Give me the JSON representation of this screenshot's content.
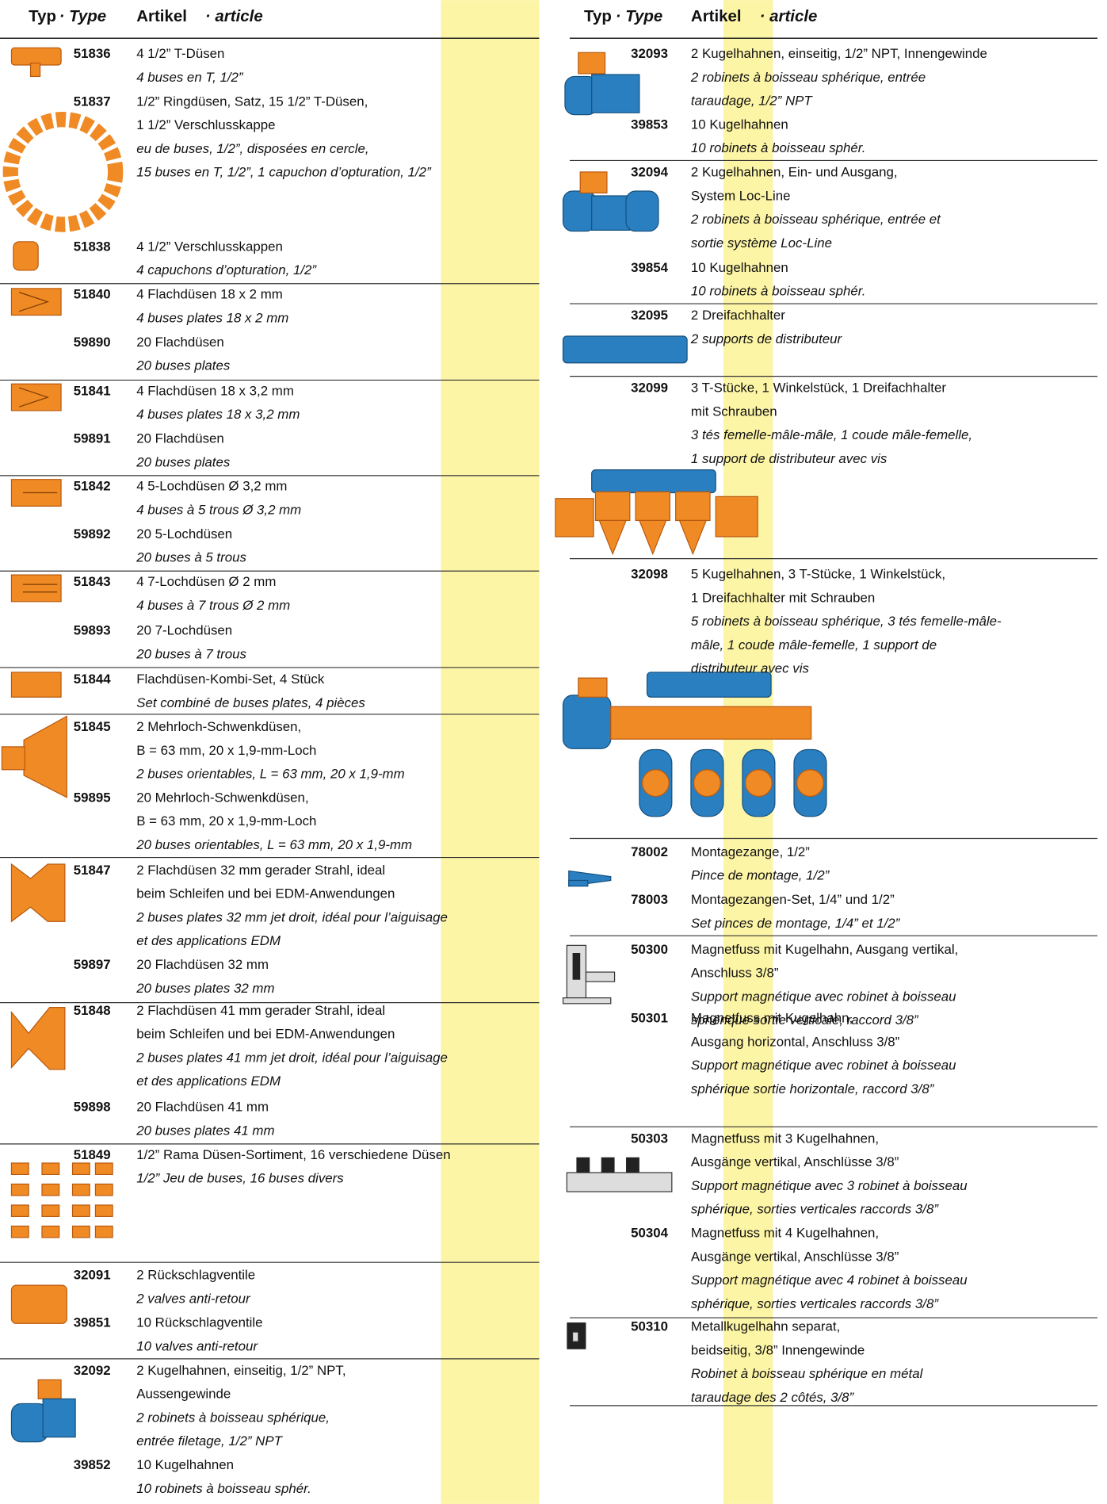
{
  "header": {
    "left": {
      "typ": "Typ",
      "type": "· Type",
      "artikel": "Artikel",
      "article": "· article"
    },
    "right": {
      "typ": "Typ",
      "type": "· Type",
      "artikel": "Artikel",
      "article": "· article"
    }
  },
  "columns": [
    {
      "groups": [
        {
          "items": [
            {
              "code": "51836",
              "de": [
                "4 1/2” T-Düsen"
              ],
              "fr": [
                "4 buses en T, 1/2”"
              ]
            },
            {
              "code": "51837",
              "de": [
                "1/2” Ringdüsen, Satz, 15 1/2” T-Düsen,",
                "1 1/2” Verschlusskappe"
              ],
              "fr": [
                "eu de buses, 1/2”, disposées en cercle,",
                "15 buses en T, 1/2”, 1 capuchon d’opturation, 1/2”"
              ]
            },
            {
              "code": "51838",
              "de": [
                "4 1/2” Verschlusskappen"
              ],
              "fr": [
                "4 capuchons d’opturation, 1/2”"
              ]
            }
          ]
        },
        {
          "items": [
            {
              "code": "51840",
              "de": [
                "4 Flachdüsen 18 x 2 mm"
              ],
              "fr": [
                "4 buses plates 18 x 2 mm"
              ]
            },
            {
              "code": "59890",
              "de": [
                "20 Flachdüsen"
              ],
              "fr": [
                "20 buses plates"
              ]
            }
          ]
        },
        {
          "items": [
            {
              "code": "51841",
              "de": [
                "4 Flachdüsen 18 x 3,2 mm"
              ],
              "fr": [
                "4 buses plates 18 x 3,2 mm"
              ]
            },
            {
              "code": "59891",
              "de": [
                "20 Flachdüsen"
              ],
              "fr": [
                "20 buses plates"
              ]
            }
          ]
        },
        {
          "items": [
            {
              "code": "51842",
              "de": [
                "4 5-Lochdüsen Ø 3,2 mm"
              ],
              "fr": [
                "4 buses à 5 trous Ø 3,2 mm"
              ]
            },
            {
              "code": "59892",
              "de": [
                "20 5-Lochdüsen"
              ],
              "fr": [
                "20 buses à 5 trous"
              ]
            }
          ]
        },
        {
          "items": [
            {
              "code": "51843",
              "de": [
                "4 7-Lochdüsen Ø 2 mm"
              ],
              "fr": [
                "4 buses à 7 trous Ø 2 mm"
              ]
            },
            {
              "code": "59893",
              "de": [
                "20 7-Lochdüsen"
              ],
              "fr": [
                "20 buses à 7 trous"
              ]
            }
          ]
        },
        {
          "items": [
            {
              "code": "51844",
              "de": [
                "Flachdüsen-Kombi-Set, 4 Stück"
              ],
              "fr": [
                "Set combiné de buses plates, 4 pièces"
              ]
            }
          ]
        },
        {
          "items": [
            {
              "code": "51845",
              "de": [
                "2 Mehrloch-Schwenkdüsen,",
                "B = 63 mm, 20 x 1,9-mm-Loch"
              ],
              "fr": [
                "2 buses orientables, L = 63 mm, 20 x 1,9-mm"
              ]
            },
            {
              "code": "59895",
              "de": [
                "20 Mehrloch-Schwenkdüsen,",
                "B = 63 mm, 20 x 1,9-mm-Loch"
              ],
              "fr": [
                "20 buses orientables, L = 63 mm, 20 x 1,9-mm"
              ]
            }
          ]
        },
        {
          "items": [
            {
              "code": "51847",
              "de": [
                "2 Flachdüsen 32 mm gerader Strahl, ideal",
                "beim Schleifen und bei EDM-Anwendungen"
              ],
              "fr": [
                "2 buses plates 32 mm jet droit, idéal pour l’aiguisage",
                "et des applications EDM"
              ]
            },
            {
              "code": "59897",
              "de": [
                "20 Flachdüsen 32 mm"
              ],
              "fr": [
                "20 buses plates 32 mm"
              ]
            }
          ]
        },
        {
          "items": [
            {
              "code": "51848",
              "de": [
                "2 Flachdüsen 41 mm gerader Strahl, ideal",
                "beim Schleifen und bei EDM-Anwendungen"
              ],
              "fr": [
                "2 buses plates 41 mm jet droit, idéal pour l’aiguisage",
                "et des applications EDM"
              ]
            },
            {
              "code": "59898",
              "de": [
                "20 Flachdüsen 41 mm"
              ],
              "fr": [
                "20 buses plates 41 mm"
              ]
            }
          ]
        },
        {
          "items": [
            {
              "code": "51849",
              "de": [
                "1/2” Rama Düsen-Sortiment, 16 verschiedene Düsen"
              ],
              "fr": [
                "1/2” Jeu de buses, 16 buses divers"
              ]
            }
          ]
        },
        {
          "items": [
            {
              "code": "32091",
              "de": [
                "2 Rückschlagventile"
              ],
              "fr": [
                "2 valves anti-retour"
              ]
            },
            {
              "code": "39851",
              "de": [
                "10 Rückschlagventile"
              ],
              "fr": [
                "10 valves anti-retour"
              ]
            }
          ]
        },
        {
          "items": [
            {
              "code": "32092",
              "de": [
                "2 Kugelhahnen, einseitig, 1/2” NPT,",
                "Aussengewinde"
              ],
              "fr": [
                "2 robinets à boisseau sphérique,",
                "entrée filetage, 1/2” NPT"
              ]
            },
            {
              "code": "39852",
              "de": [
                "10 Kugelhahnen"
              ],
              "fr": [
                "10 robinets à boisseau sphér."
              ]
            }
          ]
        }
      ]
    },
    {
      "groups": [
        {
          "items": [
            {
              "code": "32093",
              "de": [
                "2 Kugelhahnen, einseitig, 1/2” NPT, Innengewinde"
              ],
              "fr": [
                "2 robinets à boisseau sphérique, entrée",
                "taraudage, 1/2” NPT"
              ]
            },
            {
              "code": "39853",
              "de": [
                "10 Kugelhahnen"
              ],
              "fr": [
                "10 robinets à boisseau sphér."
              ]
            }
          ]
        },
        {
          "items": [
            {
              "code": "32094",
              "de": [
                "2 Kugelhahnen, Ein- und Ausgang,",
                "System Loc-Line"
              ],
              "fr": [
                "2 robinets à boisseau sphérique, entrée et",
                "sortie système Loc-Line"
              ]
            },
            {
              "code": "39854",
              "de": [
                "10 Kugelhahnen"
              ],
              "fr": [
                "10 robinets à boisseau sphér."
              ]
            }
          ]
        },
        {
          "items": [
            {
              "code": "32095",
              "de": [
                "2 Dreifachhalter"
              ],
              "fr": [
                "2 supports de distributeur"
              ]
            }
          ]
        },
        {
          "items": [
            {
              "code": "32099",
              "de": [
                "3 T-Stücke, 1 Winkelstück, 1 Dreifachhalter",
                "mit Schrauben"
              ],
              "fr": [
                "3 tés femelle-mâle-mâle, 1 coude mâle-femelle,",
                "1 support de distributeur avec vis"
              ]
            }
          ]
        },
        {
          "items": [
            {
              "code": "32098",
              "de": [
                "5 Kugelhahnen, 3 T-Stücke, 1 Winkelstück,",
                "1 Dreifachhalter mit Schrauben"
              ],
              "fr": [
                "5 robinets à boisseau sphérique, 3 tés femelle-mâle-",
                "mâle, 1 coude mâle-femelle, 1 support de",
                "distributeur avec vis"
              ]
            }
          ]
        },
        {
          "items": [
            {
              "code": "78002",
              "de": [
                "Montagezange, 1/2”"
              ],
              "fr": [
                "Pince de montage, 1/2”"
              ]
            },
            {
              "code": "78003",
              "de": [
                "Montagezangen-Set, 1/4” und 1/2”"
              ],
              "fr": [
                "Set pinces de montage, 1/4” et 1/2”"
              ]
            }
          ]
        },
        {
          "items": [
            {
              "code": "50300",
              "de": [
                "Magnetfuss mit Kugelhahn, Ausgang vertikal,",
                "Anschluss 3/8”"
              ],
              "fr": [
                "Support magnétique avec robinet à boisseau",
                "sphérique sortie verticale, raccord 3/8”"
              ]
            },
            {
              "code": "50301",
              "de": [
                "Magnetfuss mit Kugelhahn,",
                "Ausgang horizontal, Anschluss 3/8”"
              ],
              "fr": [
                "Support magnétique avec robinet à boisseau",
                "sphérique sortie horizontale, raccord 3/8”"
              ]
            }
          ]
        },
        {
          "items": [
            {
              "code": "50303",
              "de": [
                "Magnetfuss mit 3 Kugelhahnen,",
                "Ausgänge vertikal, Anschlüsse 3/8”"
              ],
              "fr": [
                "Support magnétique avec 3 robinet à boisseau",
                "sphérique, sorties verticales raccords 3/8”"
              ]
            },
            {
              "code": "50304",
              "de": [
                "Magnetfuss mit 4 Kugelhahnen,",
                "Ausgänge vertikal, Anschlüsse 3/8”"
              ],
              "fr": [
                "Support magnétique avec 4 robinet à boisseau",
                "sphérique, sorties verticales raccords 3/8”"
              ]
            }
          ]
        },
        {
          "items": [
            {
              "code": "50310",
              "de": [
                "Metallkugelhahn separat,",
                "beidseitig, 3/8” Innengewinde"
              ],
              "fr": [
                "Robinet à boisseau sphérique en métal",
                "taraudage des 2 côtés, 3/8”"
              ]
            }
          ]
        }
      ]
    }
  ]
}
